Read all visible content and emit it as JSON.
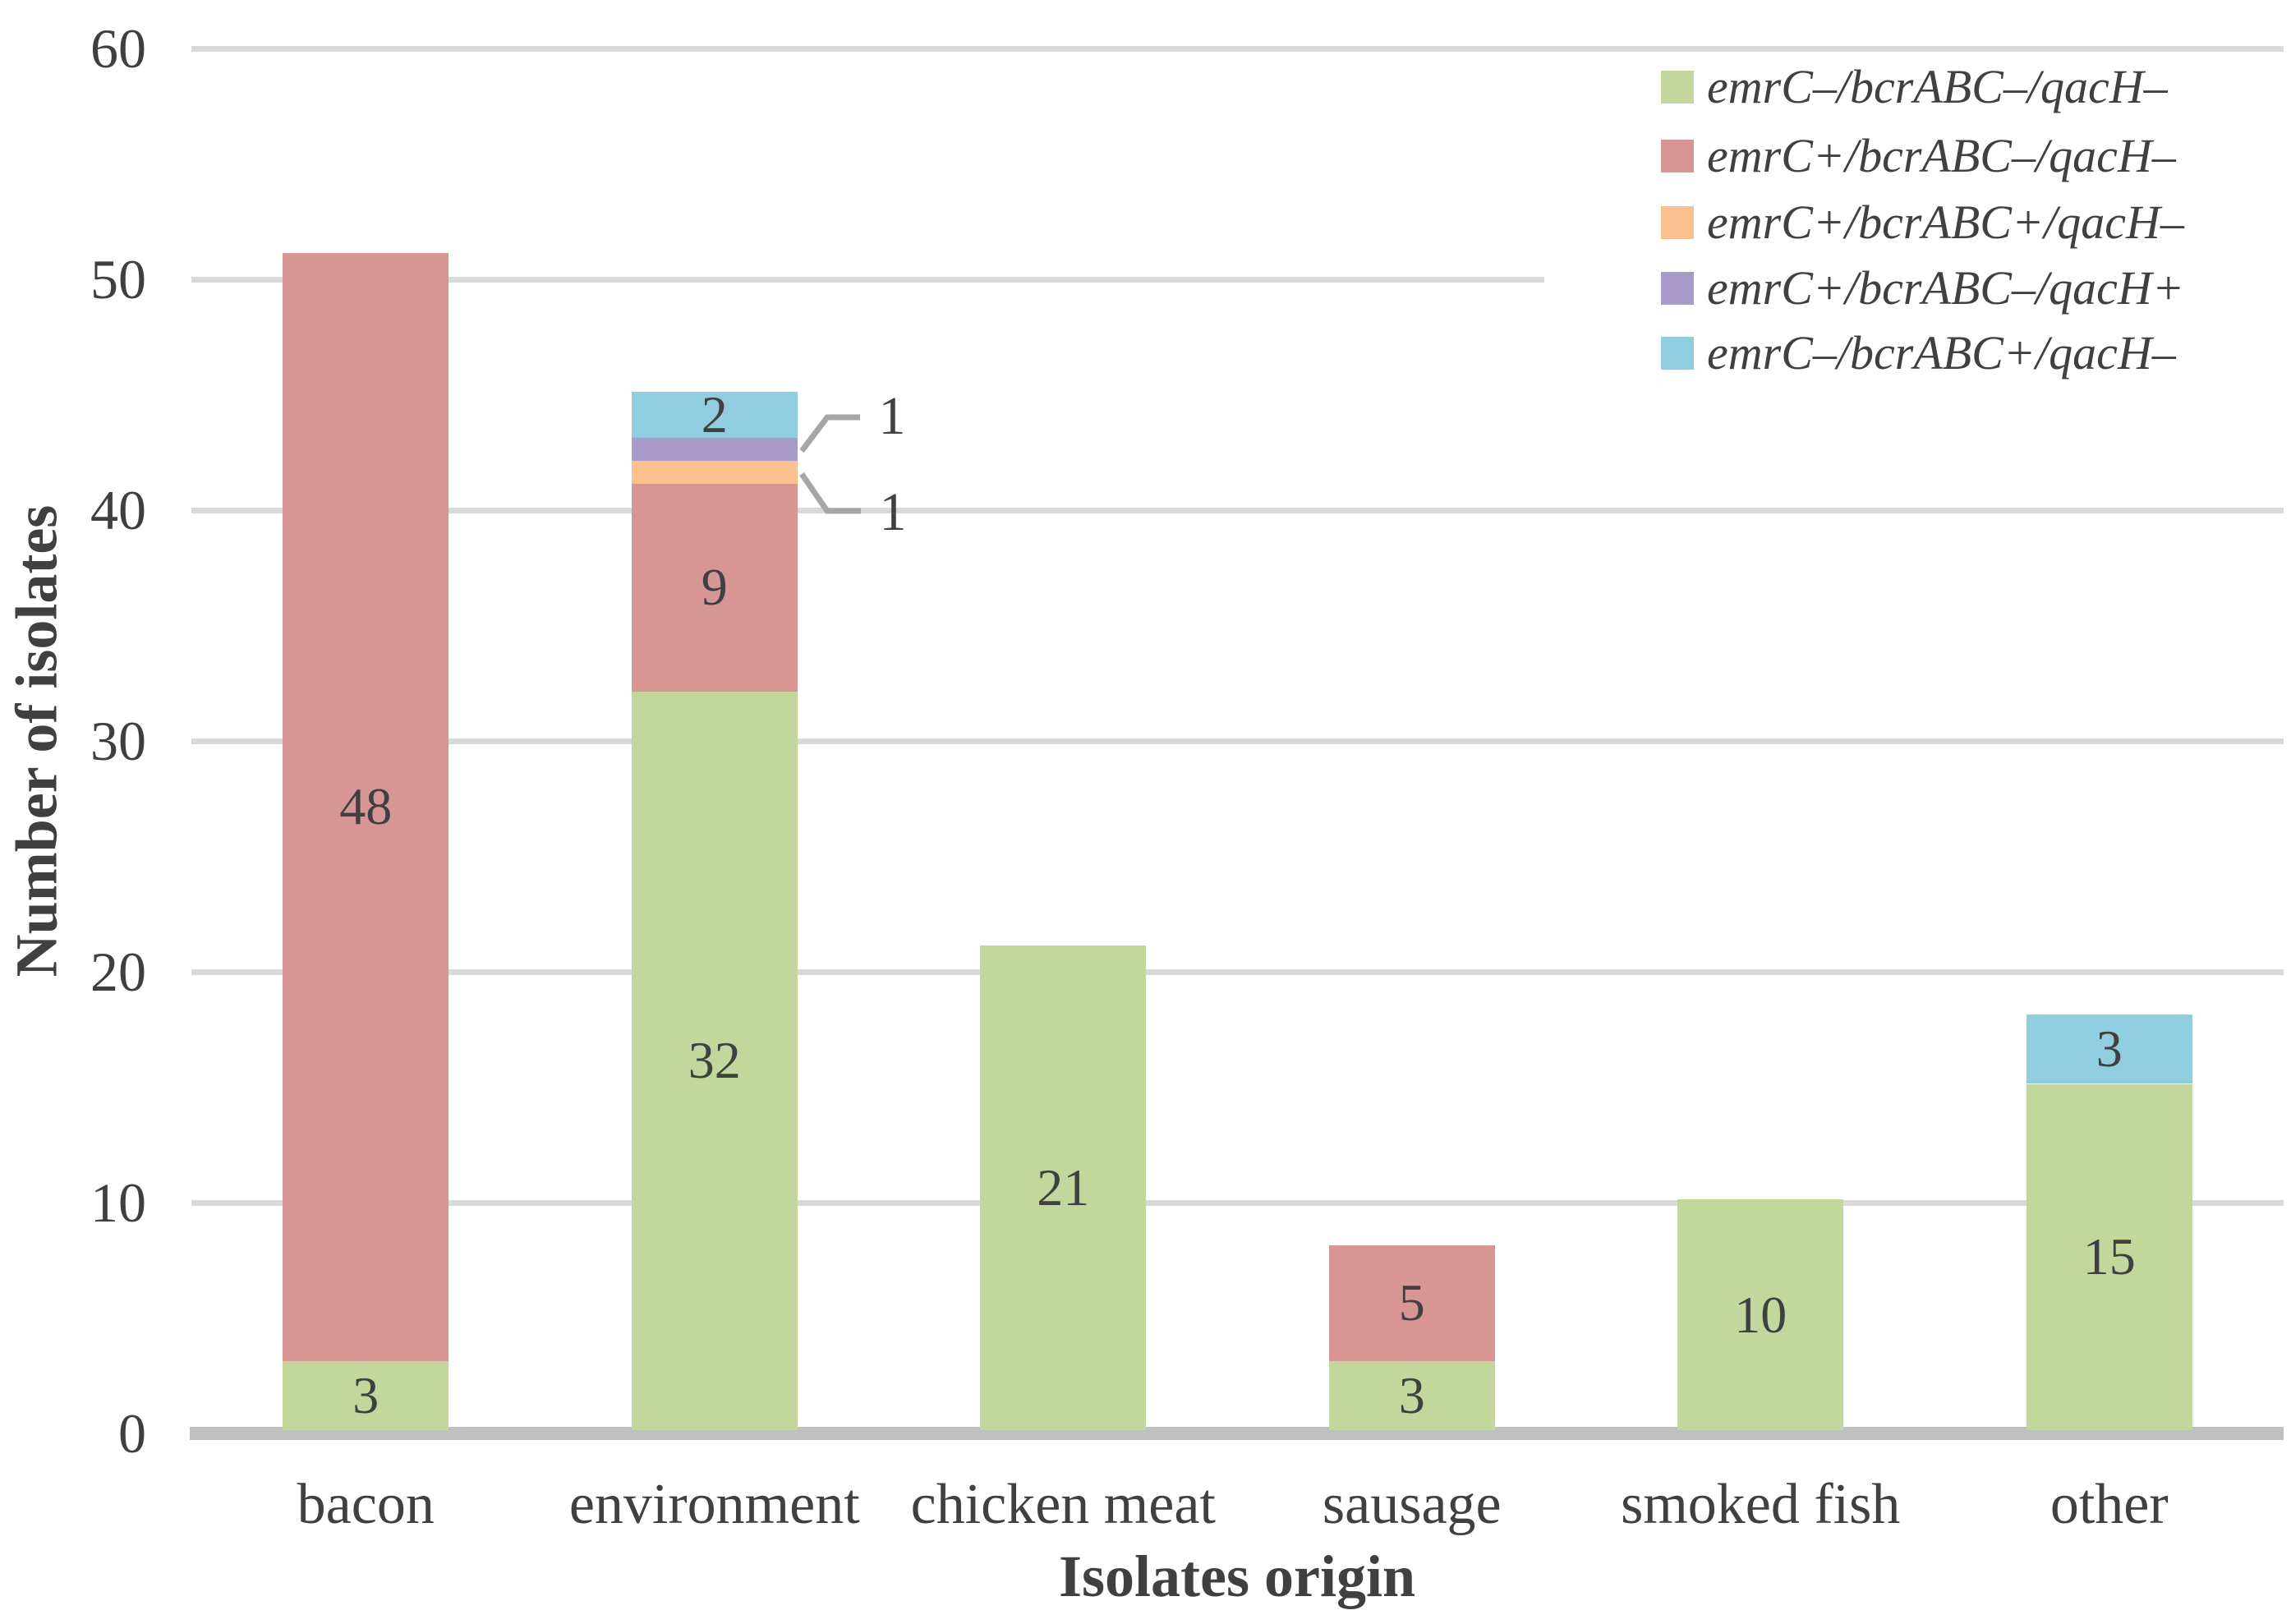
{
  "chart_data": {
    "type": "bar",
    "stacked": true,
    "xlabel": "Isolates origin",
    "ylabel": "Number of isolates",
    "ylim": [
      0,
      60
    ],
    "yticks": [
      0,
      10,
      20,
      30,
      40,
      50,
      60
    ],
    "grid": true,
    "legend_position": "top-right",
    "categories": [
      "bacon",
      "environment",
      "chicken meat",
      "sausage",
      "smoked fish",
      "other"
    ],
    "series": [
      {
        "name": "emrC–/bcrABC–/qacH–",
        "color": "#c3d69b",
        "values": [
          3,
          32,
          21,
          3,
          10,
          15
        ]
      },
      {
        "name": "emrC+/bcrABC–/qacH–",
        "color": "#d79694",
        "values": [
          48,
          9,
          0,
          5,
          0,
          0
        ]
      },
      {
        "name": "emrC+/bcrABC+/qacH–",
        "color": "#fac08f",
        "values": [
          0,
          1,
          0,
          0,
          0,
          0
        ]
      },
      {
        "name": "emrC+/bcrABC–/qacH+",
        "color": "#a99bc9",
        "values": [
          0,
          1,
          0,
          0,
          0,
          0
        ]
      },
      {
        "name": "emrC–/bcrABC+/qacH–",
        "color": "#90cedf",
        "values": [
          0,
          2,
          0,
          0,
          0,
          3
        ]
      }
    ],
    "callouts": [
      {
        "label": "1",
        "series_index": 3,
        "category_index": 1
      },
      {
        "label": "1",
        "series_index": 2,
        "category_index": 1
      }
    ],
    "colors": {
      "gridline": "#d9d9d9",
      "axis_line": "#bfbfbf",
      "callout_line": "#a6a6a6",
      "text": "#404040"
    }
  }
}
